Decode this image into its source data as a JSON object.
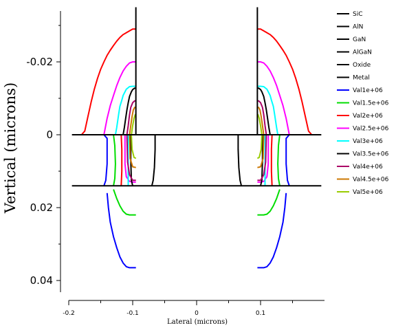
{
  "chart_data": {
    "type": "line",
    "title": "",
    "xlabel": "Lateral (microns)",
    "ylabel": "Vertical (microns)",
    "xlim": [
      -0.2,
      0.2
    ],
    "ylim": [
      0.04,
      -0.035
    ],
    "y_axis_inverted": true,
    "grid": false,
    "legend_position": "right",
    "x_ticks": [
      -0.2,
      -0.1,
      0,
      0.1
    ],
    "x_tick_labels": [
      "-0.2",
      "-0.1",
      "0",
      "0.1"
    ],
    "y_ticks": [
      -0.02,
      0,
      0.02,
      0.04
    ],
    "y_tick_labels": [
      "-0.02",
      "0",
      "0.02",
      "0.04"
    ],
    "boundaries": [
      {
        "name": "GaN/AlGaN top interface",
        "y": 0,
        "x": [
          -0.195,
          0.195
        ]
      },
      {
        "name": "AlGaN/GaN interface",
        "y": 0.014,
        "x": [
          -0.195,
          0.195
        ]
      },
      {
        "name": "left metal contact",
        "x": -0.095,
        "y": [
          -0.035,
          0
        ]
      },
      {
        "name": "right metal contact",
        "x": 0.095,
        "y": [
          -0.035,
          0
        ]
      }
    ],
    "series": [
      {
        "name": "SiC",
        "color": "#000000"
      },
      {
        "name": "AlN",
        "color": "#000000"
      },
      {
        "name": "GaN",
        "color": "#000000"
      },
      {
        "name": "AlGaN",
        "color": "#000000"
      },
      {
        "name": "Oxide",
        "color": "#000000"
      },
      {
        "name": "Metal",
        "color": "#000000"
      },
      {
        "name": "Val1e+06",
        "color": "#0000ff",
        "segments": [
          {
            "x": [
              -0.14,
              -0.138,
              -0.135,
              -0.13,
              -0.125,
              -0.12,
              -0.115,
              -0.11,
              -0.105,
              -0.1,
              -0.095
            ],
            "y": [
              0.016,
              0.02,
              0.024,
              0.028,
              0.031,
              0.0335,
              0.0352,
              0.0362,
              0.0365,
              0.0365,
              0.0365
            ]
          },
          {
            "x": [
              0.14,
              0.138,
              0.135,
              0.13,
              0.125,
              0.12,
              0.115,
              0.11,
              0.105,
              0.1,
              0.095
            ],
            "y": [
              0.016,
              0.02,
              0.024,
              0.028,
              0.031,
              0.0335,
              0.0352,
              0.0362,
              0.0365,
              0.0365,
              0.0365
            ]
          },
          {
            "x": [
              -0.145,
              -0.14,
              -0.14,
              -0.142,
              -0.145
            ],
            "y": [
              0.0,
              0.001,
              0.008,
              0.0125,
              0.014
            ]
          },
          {
            "x": [
              0.145,
              0.14,
              0.14,
              0.142,
              0.145
            ],
            "y": [
              0.0,
              0.001,
              0.008,
              0.0125,
              0.014
            ]
          }
        ]
      },
      {
        "name": "Val1.5e+06",
        "color": "#00dd00",
        "segments": [
          {
            "x": [
              -0.13,
              -0.125,
              -0.12,
              -0.115,
              -0.11,
              -0.105,
              -0.1,
              -0.095
            ],
            "y": [
              0.015,
              0.0175,
              0.0195,
              0.021,
              0.0218,
              0.022,
              0.022,
              0.022
            ]
          },
          {
            "x": [
              0.13,
              0.125,
              0.12,
              0.115,
              0.11,
              0.105,
              0.1,
              0.095
            ],
            "y": [
              0.015,
              0.0175,
              0.0195,
              0.021,
              0.0218,
              0.022,
              0.022,
              0.022
            ]
          },
          {
            "x": [
              -0.13,
              -0.128,
              -0.127,
              -0.128,
              -0.13
            ],
            "y": [
              0.0,
              0.003,
              0.008,
              0.012,
              0.014
            ]
          },
          {
            "x": [
              0.13,
              0.128,
              0.127,
              0.128,
              0.13
            ],
            "y": [
              0.0,
              0.003,
              0.008,
              0.012,
              0.014
            ]
          }
        ]
      },
      {
        "name": "Val2e+06",
        "color": "#ff0000",
        "segments": [
          {
            "x": [
              -0.18,
              -0.175,
              -0.17,
              -0.165,
              -0.16,
              -0.155,
              -0.15,
              -0.145,
              -0.14,
              -0.135,
              -0.13,
              -0.125,
              -0.12,
              -0.115,
              -0.11,
              -0.105,
              -0.1,
              -0.095
            ],
            "y": [
              0.0,
              -0.001,
              -0.005,
              -0.009,
              -0.0125,
              -0.0155,
              -0.018,
              -0.02,
              -0.0218,
              -0.0232,
              -0.0245,
              -0.0257,
              -0.0267,
              -0.0275,
              -0.028,
              -0.0285,
              -0.029,
              -0.029
            ]
          },
          {
            "x": [
              0.18,
              0.175,
              0.17,
              0.165,
              0.16,
              0.155,
              0.15,
              0.145,
              0.14,
              0.135,
              0.13,
              0.125,
              0.12,
              0.115,
              0.11,
              0.105,
              0.1,
              0.095
            ],
            "y": [
              0.0,
              -0.001,
              -0.005,
              -0.009,
              -0.0125,
              -0.0155,
              -0.018,
              -0.02,
              -0.0218,
              -0.0232,
              -0.0245,
              -0.0257,
              -0.0267,
              -0.0275,
              -0.028,
              -0.0285,
              -0.029,
              -0.029
            ]
          },
          {
            "x": [
              -0.118,
              -0.117,
              -0.117,
              -0.118
            ],
            "y": [
              0.0,
              0.004,
              0.01,
              0.014
            ]
          },
          {
            "x": [
              0.118,
              0.117,
              0.117,
              0.118
            ],
            "y": [
              0.0,
              0.004,
              0.01,
              0.014
            ]
          }
        ]
      },
      {
        "name": "Val2.5e+06",
        "color": "#ff00ff",
        "segments": [
          {
            "x": [
              -0.145,
              -0.14,
              -0.135,
              -0.13,
              -0.125,
              -0.12,
              -0.115,
              -0.11,
              -0.105,
              -0.1,
              -0.095
            ],
            "y": [
              0.0,
              -0.0045,
              -0.008,
              -0.0108,
              -0.0135,
              -0.0157,
              -0.0175,
              -0.0188,
              -0.0197,
              -0.02,
              -0.02
            ]
          },
          {
            "x": [
              0.145,
              0.14,
              0.135,
              0.13,
              0.125,
              0.12,
              0.115,
              0.11,
              0.105,
              0.1,
              0.095
            ],
            "y": [
              0.0,
              -0.0045,
              -0.008,
              -0.0108,
              -0.0135,
              -0.0157,
              -0.0175,
              -0.0188,
              -0.0197,
              -0.02,
              -0.02
            ]
          },
          {
            "x": [
              -0.112,
              -0.112,
              -0.11,
              -0.105,
              -0.1,
              -0.095
            ],
            "y": [
              0.0,
              0.008,
              0.0115,
              0.0128,
              0.013,
              0.013
            ]
          },
          {
            "x": [
              0.112,
              0.112,
              0.11,
              0.105,
              0.1,
              0.095
            ],
            "y": [
              0.0,
              0.008,
              0.0115,
              0.0128,
              0.013,
              0.013
            ]
          }
        ]
      },
      {
        "name": "Val3e+06",
        "color": "#00ffff",
        "segments": [
          {
            "x": [
              -0.127,
              -0.125,
              -0.122,
              -0.12,
              -0.117,
              -0.115,
              -0.112,
              -0.11,
              -0.105,
              -0.1,
              -0.095
            ],
            "y": [
              0.0,
              -0.002,
              -0.0055,
              -0.0078,
              -0.0095,
              -0.0108,
              -0.0118,
              -0.0125,
              -0.0132,
              -0.0133,
              -0.0133
            ]
          },
          {
            "x": [
              0.127,
              0.125,
              0.122,
              0.12,
              0.117,
              0.115,
              0.112,
              0.11,
              0.105,
              0.1,
              0.095
            ],
            "y": [
              0.0,
              -0.002,
              -0.0055,
              -0.0078,
              -0.0095,
              -0.0108,
              -0.0118,
              -0.0125,
              -0.0132,
              -0.0133,
              -0.0133
            ]
          },
          {
            "x": [
              -0.107,
              -0.107,
              -0.107
            ],
            "y": [
              0.0,
              0.007,
              0.014
            ]
          },
          {
            "x": [
              0.107,
              0.107,
              0.107
            ],
            "y": [
              0.0,
              0.007,
              0.014
            ]
          }
        ]
      },
      {
        "name": "Val3.5e+06",
        "color": "#000000",
        "segments": [
          {
            "x": [
              -0.115,
              -0.113,
              -0.111,
              -0.109,
              -0.107,
              -0.105,
              -0.102,
              -0.1,
              -0.097,
              -0.095
            ],
            "y": [
              0.0,
              -0.002,
              -0.0045,
              -0.0068,
              -0.0088,
              -0.0105,
              -0.0118,
              -0.0124,
              -0.0128,
              -0.0128
            ]
          },
          {
            "x": [
              0.115,
              0.113,
              0.111,
              0.109,
              0.107,
              0.105,
              0.102,
              0.1,
              0.097,
              0.095
            ],
            "y": [
              0.0,
              -0.002,
              -0.0045,
              -0.0068,
              -0.0088,
              -0.0105,
              -0.0118,
              -0.0124,
              -0.0128,
              -0.0128
            ]
          },
          {
            "x": [
              -0.065,
              -0.065,
              -0.066,
              -0.068,
              -0.07
            ],
            "y": [
              0.0,
              0.004,
              0.009,
              0.0125,
              0.014
            ]
          },
          {
            "x": [
              0.065,
              0.065,
              0.066,
              0.068,
              0.07
            ],
            "y": [
              0.0,
              0.004,
              0.009,
              0.0125,
              0.014
            ]
          },
          {
            "x": [
              -0.103,
              -0.103,
              -0.102,
              -0.1
            ],
            "y": [
              0.0,
              0.007,
              0.0125,
              0.014
            ]
          },
          {
            "x": [
              0.103,
              0.103,
              0.102,
              0.1
            ],
            "y": [
              0.0,
              0.007,
              0.0125,
              0.014
            ]
          }
        ]
      },
      {
        "name": "Val4e+06",
        "color": "#aa0066",
        "segments": [
          {
            "x": [
              -0.109,
              -0.107,
              -0.105,
              -0.103,
              -0.1,
              -0.097,
              -0.095
            ],
            "y": [
              0.0,
              -0.0025,
              -0.0055,
              -0.0075,
              -0.0088,
              -0.0093,
              -0.0093
            ]
          },
          {
            "x": [
              0.109,
              0.107,
              0.105,
              0.103,
              0.1,
              0.097,
              0.095
            ],
            "y": [
              0.0,
              -0.0025,
              -0.0055,
              -0.0075,
              -0.0088,
              -0.0093,
              -0.0093
            ]
          },
          {
            "x": [
              -0.109,
              -0.108,
              -0.105,
              -0.1,
              -0.095
            ],
            "y": [
              0.0,
              0.0075,
              0.011,
              0.0125,
              0.0125
            ]
          },
          {
            "x": [
              0.109,
              0.108,
              0.105,
              0.1,
              0.095
            ],
            "y": [
              0.0,
              0.0075,
              0.011,
              0.0125,
              0.0125
            ]
          }
        ]
      },
      {
        "name": "Val4.5e+06",
        "color": "#cc7700",
        "segments": [
          {
            "x": [
              -0.105,
              -0.103,
              -0.101,
              -0.099,
              -0.097,
              -0.095
            ],
            "y": [
              0.0,
              -0.0025,
              -0.005,
              -0.0068,
              -0.0075,
              -0.0075
            ]
          },
          {
            "x": [
              0.105,
              0.103,
              0.101,
              0.099,
              0.097,
              0.095
            ],
            "y": [
              0.0,
              -0.0025,
              -0.005,
              -0.0068,
              -0.0075,
              -0.0075
            ]
          },
          {
            "x": [
              -0.105,
              -0.104,
              -0.1,
              -0.095
            ],
            "y": [
              0.0,
              0.0065,
              0.0088,
              0.009
            ]
          },
          {
            "x": [
              0.105,
              0.104,
              0.1,
              0.095
            ],
            "y": [
              0.0,
              0.0065,
              0.0088,
              0.009
            ]
          }
        ]
      },
      {
        "name": "Val5e+06",
        "color": "#99cc00",
        "segments": [
          {
            "x": [
              -0.102,
              -0.1,
              -0.098,
              -0.096,
              -0.095
            ],
            "y": [
              0.0,
              -0.0025,
              -0.0045,
              -0.0055,
              -0.0055
            ]
          },
          {
            "x": [
              0.102,
              0.1,
              0.098,
              0.096,
              0.095
            ],
            "y": [
              0.0,
              -0.0025,
              -0.0045,
              -0.0055,
              -0.0055
            ]
          },
          {
            "x": [
              -0.102,
              -0.101,
              -0.098,
              -0.095
            ],
            "y": [
              0.0,
              0.004,
              0.0062,
              0.0065
            ]
          },
          {
            "x": [
              0.102,
              0.101,
              0.098,
              0.095
            ],
            "y": [
              0.0,
              0.004,
              0.0062,
              0.0065
            ]
          }
        ]
      }
    ]
  }
}
